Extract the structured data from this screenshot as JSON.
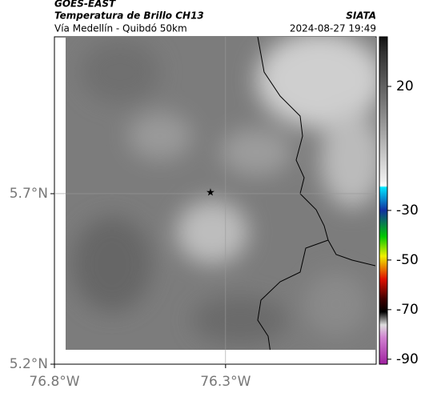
{
  "header": {
    "source": "GOES-EAST",
    "product": "Temperatura de Brillo CH13",
    "region": "Vía Medellín - Quibdó 50km",
    "agency": "SIATA",
    "datetime": "2024-08-27 19:49"
  },
  "map": {
    "xlim": [
      -76.8,
      -75.86
    ],
    "ylim": [
      5.2,
      6.16
    ],
    "xticks": [
      {
        "value": -76.8,
        "label": "76.8°W"
      },
      {
        "value": -76.3,
        "label": "76.3°W"
      }
    ],
    "yticks": [
      {
        "value": 5.2,
        "label": "5.2°N"
      },
      {
        "value": 5.7,
        "label": "5.7°N"
      }
    ],
    "grid": true,
    "marker": {
      "lon": -76.344,
      "lat": 5.702
    }
  },
  "colorbar": {
    "lim": [
      -92,
      40
    ],
    "ticks": [
      20,
      -30,
      -50,
      -70,
      -90
    ]
  }
}
